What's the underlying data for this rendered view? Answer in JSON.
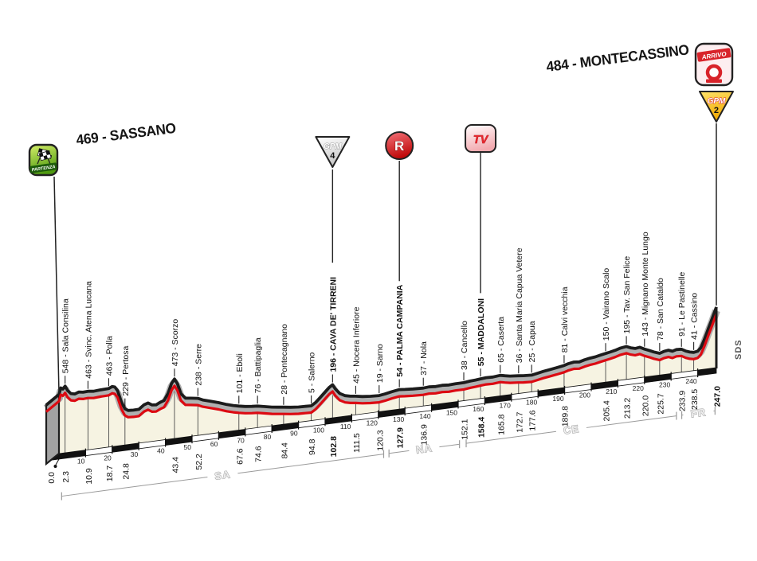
{
  "meta": {
    "background": "#ffffff"
  },
  "colors": {
    "road_outline": "#1c1c1c",
    "road_red": "#dc0a12",
    "ribbon_gray": "#b0b0b0",
    "fill_cream": "#f6f3e2",
    "band_black": "#111111",
    "band_white": "#ffffff",
    "province_gray": "#9a9a9a",
    "gpm2_yellow": "#ffd23f",
    "icon_red": "#d8232a",
    "partenza_green": "#55a012"
  },
  "start": {
    "title": "469 - SASSANO",
    "icon_label": "PARTENZA"
  },
  "finish": {
    "title": "484 - MONTECASSINO",
    "icon_label": "ARRIVO",
    "gpm_label": "GPM",
    "gpm_number": "2"
  },
  "icons": {
    "gpm4": {
      "label": "GPM",
      "number": "4"
    },
    "feed_zone": {
      "label": "R"
    },
    "tv": {
      "label": "TV"
    }
  },
  "credit": "SDS",
  "chart_data": {
    "type": "area",
    "title": "469 - Sassano to 484 - Montecassino stage elevation profile",
    "x_unit": "km",
    "y_unit": "m",
    "xlim": [
      0,
      247
    ],
    "ruler_ticks_km": [
      10,
      20,
      30,
      40,
      50,
      60,
      70,
      80,
      90,
      100,
      110,
      120,
      130,
      140,
      150,
      160,
      170,
      180,
      190,
      200,
      210,
      220,
      230,
      240
    ],
    "provinces": [
      {
        "code": "SA",
        "from_km": 1,
        "to_km": 122
      },
      {
        "code": "NA",
        "from_km": 124,
        "to_km": 150.5
      },
      {
        "code": "CE",
        "from_km": 153,
        "to_km": 232
      },
      {
        "code": "FR",
        "from_km": 234,
        "to_km": 246.5
      }
    ],
    "waypoints": [
      {
        "km": 0.0,
        "elev": 469,
        "label": "",
        "bold": false,
        "icon": null
      },
      {
        "km": 2.3,
        "elev": 548,
        "label": "548 - Sala Consilina",
        "bold": false,
        "icon": null
      },
      {
        "km": 10.9,
        "elev": 463,
        "label": "463 - Svinc. Atena Lucana",
        "bold": false,
        "icon": null
      },
      {
        "km": 18.7,
        "elev": 463,
        "label": "463 - Polla",
        "bold": false,
        "icon": null
      },
      {
        "km": 24.8,
        "elev": 229,
        "label": "229 - Pertosa",
        "bold": false,
        "icon": null
      },
      {
        "km": 43.4,
        "elev": 473,
        "label": "473 - Scorzo",
        "bold": false,
        "icon": null
      },
      {
        "km": 52.2,
        "elev": 238,
        "label": "238 - Serre",
        "bold": false,
        "icon": null
      },
      {
        "km": 67.6,
        "elev": 101,
        "label": "101 - Eboli",
        "bold": false,
        "icon": null
      },
      {
        "km": 74.6,
        "elev": 76,
        "label": "76 - Battipaglia",
        "bold": false,
        "icon": null
      },
      {
        "km": 84.4,
        "elev": 28,
        "label": "28 - Pontecagnano",
        "bold": false,
        "icon": null
      },
      {
        "km": 94.8,
        "elev": 5,
        "label": "5 - Salerno",
        "bold": false,
        "icon": null
      },
      {
        "km": 102.8,
        "elev": 196,
        "label": "196 - CAVA DE' TIRRENI",
        "bold": true,
        "icon": "gpm4"
      },
      {
        "km": 111.5,
        "elev": 45,
        "label": "45 - Nocera Inferiore",
        "bold": false,
        "icon": null
      },
      {
        "km": 120.3,
        "elev": 19,
        "label": "19 - Sarno",
        "bold": false,
        "icon": null
      },
      {
        "km": 127.9,
        "elev": 54,
        "label": "54 - PALMA CAMPANIA",
        "bold": true,
        "icon": "feed_zone"
      },
      {
        "km": 136.9,
        "elev": 37,
        "label": "37 - Nola",
        "bold": false,
        "icon": null
      },
      {
        "km": 152.1,
        "elev": 38,
        "label": "38 - Cancello",
        "bold": false,
        "icon": null
      },
      {
        "km": 158.4,
        "elev": 55,
        "label": "55 - MADDALONI",
        "bold": true,
        "icon": "tv"
      },
      {
        "km": 165.8,
        "elev": 65,
        "label": "65 - Caserta",
        "bold": false,
        "icon": null
      },
      {
        "km": 172.7,
        "elev": 36,
        "label": "36 - Santa Maria Capua Vetere",
        "bold": false,
        "icon": null
      },
      {
        "km": 177.6,
        "elev": 25,
        "label": "25 - Capua",
        "bold": false,
        "icon": null
      },
      {
        "km": 189.8,
        "elev": 81,
        "label": "81 - Calvi vecchia",
        "bold": false,
        "icon": null
      },
      {
        "km": 205.4,
        "elev": 150,
        "label": "150 - Vairano Scalo",
        "bold": false,
        "icon": null
      },
      {
        "km": 213.2,
        "elev": 195,
        "label": "195 - Tav. San Felice",
        "bold": false,
        "icon": null
      },
      {
        "km": 220.0,
        "elev": 143,
        "label": "143 - Mignano Monte Lungo",
        "bold": false,
        "icon": null
      },
      {
        "km": 225.7,
        "elev": 78,
        "label": "78 - San Cataldo",
        "bold": false,
        "icon": null
      },
      {
        "km": 233.9,
        "elev": 91,
        "label": "91 - Le Pastinelle",
        "bold": false,
        "icon": null
      },
      {
        "km": 238.5,
        "elev": 41,
        "label": "41 - Cassino",
        "bold": false,
        "icon": null
      },
      {
        "km": 247.0,
        "elev": 484,
        "label": "",
        "bold": true,
        "icon": null
      }
    ],
    "shape": [
      [
        0,
        469
      ],
      [
        0.7,
        535
      ],
      [
        1.5,
        520
      ],
      [
        2.3,
        548
      ],
      [
        3.2,
        500
      ],
      [
        4.5,
        462
      ],
      [
        6,
        452
      ],
      [
        7.5,
        468
      ],
      [
        9,
        460
      ],
      [
        10.9,
        463
      ],
      [
        13,
        455
      ],
      [
        15.5,
        460
      ],
      [
        18.7,
        463
      ],
      [
        20,
        480
      ],
      [
        21,
        470
      ],
      [
        22,
        430
      ],
      [
        23.5,
        300
      ],
      [
        24.8,
        229
      ],
      [
        26,
        207
      ],
      [
        28,
        203
      ],
      [
        30,
        204
      ],
      [
        32,
        245
      ],
      [
        33.5,
        258
      ],
      [
        35,
        232
      ],
      [
        36.5,
        228
      ],
      [
        38,
        248
      ],
      [
        39.5,
        262
      ],
      [
        41,
        330
      ],
      [
        42.3,
        430
      ],
      [
        43.4,
        473
      ],
      [
        44.5,
        420
      ],
      [
        45.8,
        310
      ],
      [
        47.5,
        258
      ],
      [
        49.5,
        250
      ],
      [
        52.2,
        238
      ],
      [
        54,
        215
      ],
      [
        57,
        190
      ],
      [
        60,
        165
      ],
      [
        63,
        135
      ],
      [
        65.5,
        115
      ],
      [
        67.6,
        101
      ],
      [
        70,
        88
      ],
      [
        72.5,
        80
      ],
      [
        74.6,
        76
      ],
      [
        77,
        62
      ],
      [
        80,
        45
      ],
      [
        82.5,
        35
      ],
      [
        84.4,
        28
      ],
      [
        87,
        18
      ],
      [
        90,
        10
      ],
      [
        92.5,
        7
      ],
      [
        94.8,
        5
      ],
      [
        96.5,
        35
      ],
      [
        98,
        75
      ],
      [
        100,
        130
      ],
      [
        101.5,
        172
      ],
      [
        102.8,
        196
      ],
      [
        103.8,
        150
      ],
      [
        105.5,
        95
      ],
      [
        107.5,
        65
      ],
      [
        109.5,
        52
      ],
      [
        111.5,
        45
      ],
      [
        114,
        32
      ],
      [
        117,
        24
      ],
      [
        120.3,
        19
      ],
      [
        122.5,
        28
      ],
      [
        125,
        42
      ],
      [
        127.9,
        54
      ],
      [
        130,
        48
      ],
      [
        133,
        42
      ],
      [
        136.9,
        37
      ],
      [
        139,
        42
      ],
      [
        141.5,
        36
      ],
      [
        144,
        40
      ],
      [
        146.5,
        35
      ],
      [
        149,
        39
      ],
      [
        152.1,
        38
      ],
      [
        154.5,
        46
      ],
      [
        156.5,
        50
      ],
      [
        158.4,
        55
      ],
      [
        160.5,
        60
      ],
      [
        163,
        58
      ],
      [
        165.8,
        65
      ],
      [
        167.5,
        55
      ],
      [
        169.5,
        44
      ],
      [
        172.7,
        36
      ],
      [
        174.5,
        30
      ],
      [
        177.6,
        25
      ],
      [
        179.5,
        34
      ],
      [
        182,
        48
      ],
      [
        184.5,
        58
      ],
      [
        187,
        68
      ],
      [
        189.8,
        81
      ],
      [
        191.5,
        95
      ],
      [
        193.5,
        103
      ],
      [
        195.5,
        98
      ],
      [
        197.5,
        112
      ],
      [
        199.5,
        122
      ],
      [
        201.5,
        128
      ],
      [
        203.5,
        140
      ],
      [
        205.4,
        150
      ],
      [
        207,
        158
      ],
      [
        209,
        170
      ],
      [
        211,
        186
      ],
      [
        213.2,
        195
      ],
      [
        214.8,
        175
      ],
      [
        216.5,
        162
      ],
      [
        218.2,
        168
      ],
      [
        220,
        143
      ],
      [
        221.8,
        122
      ],
      [
        223.5,
        100
      ],
      [
        225.7,
        78
      ],
      [
        227.3,
        92
      ],
      [
        229,
        98
      ],
      [
        230.5,
        82
      ],
      [
        232,
        94
      ],
      [
        233.9,
        91
      ],
      [
        235.5,
        65
      ],
      [
        237,
        50
      ],
      [
        238.5,
        41
      ],
      [
        240,
        48
      ],
      [
        241.2,
        80
      ],
      [
        242.5,
        160
      ],
      [
        244,
        270
      ],
      [
        245.5,
        375
      ],
      [
        247,
        484
      ]
    ]
  }
}
